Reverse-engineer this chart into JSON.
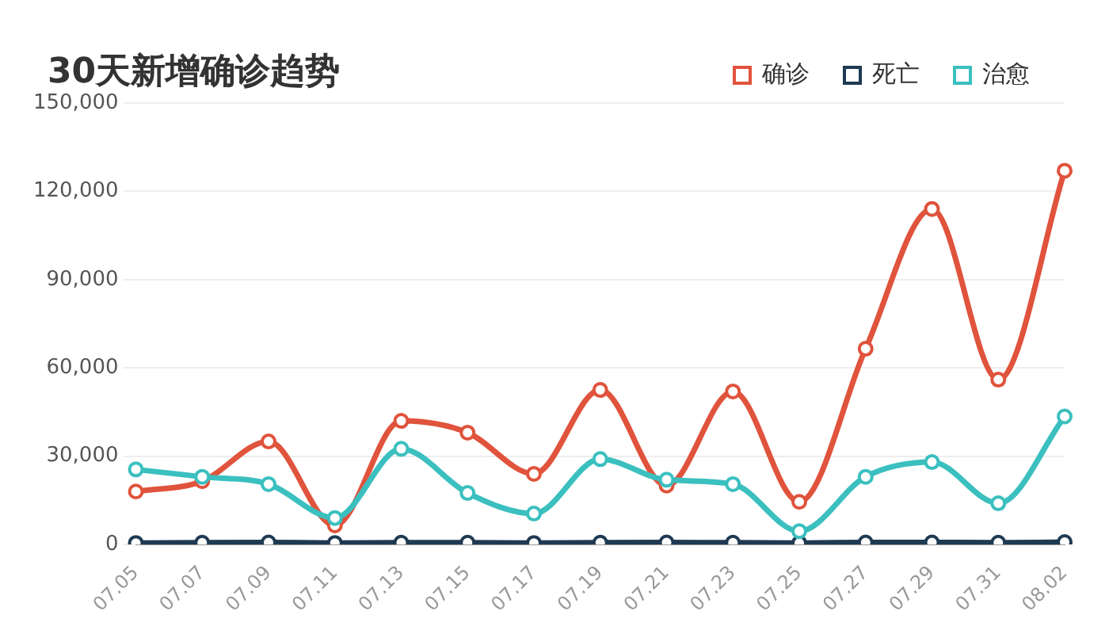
{
  "chart_data": {
    "type": "line",
    "title": "30天新增确诊趋势",
    "categories": [
      "07.05",
      "07.07",
      "07.09",
      "07.11",
      "07.13",
      "07.15",
      "07.17",
      "07.19",
      "07.21",
      "07.23",
      "07.25",
      "07.27",
      "07.29",
      "07.31",
      "08.02"
    ],
    "series": [
      {
        "name": "确诊",
        "color": "#e0533c",
        "values": [
          18000,
          21500,
          35000,
          6500,
          42000,
          38000,
          24000,
          52500,
          20000,
          52000,
          14500,
          66500,
          114000,
          56000,
          127000
        ]
      },
      {
        "name": "死亡",
        "color": "#1f3a52",
        "values": [
          500,
          600,
          700,
          500,
          600,
          600,
          500,
          600,
          700,
          600,
          500,
          700,
          700,
          600,
          800
        ]
      },
      {
        "name": "治愈",
        "color": "#3bbfbf",
        "values": [
          25500,
          23000,
          20500,
          9000,
          32500,
          17500,
          10500,
          29000,
          22000,
          20500,
          4500,
          23000,
          28000,
          14000,
          43500
        ]
      }
    ],
    "ylim": [
      0,
      150000
    ],
    "yticks": [
      0,
      {
        "value": 30000,
        "label": "30,000"
      },
      {
        "value": 60000,
        "label": "60,000"
      },
      {
        "value": 90000,
        "label": "90,000"
      },
      {
        "value": 120000,
        "label": "120,000"
      },
      {
        "value": 150000,
        "label": "150,000"
      }
    ],
    "grid": "y",
    "legend": "top right",
    "marker": "circle",
    "line_style": "solid"
  }
}
